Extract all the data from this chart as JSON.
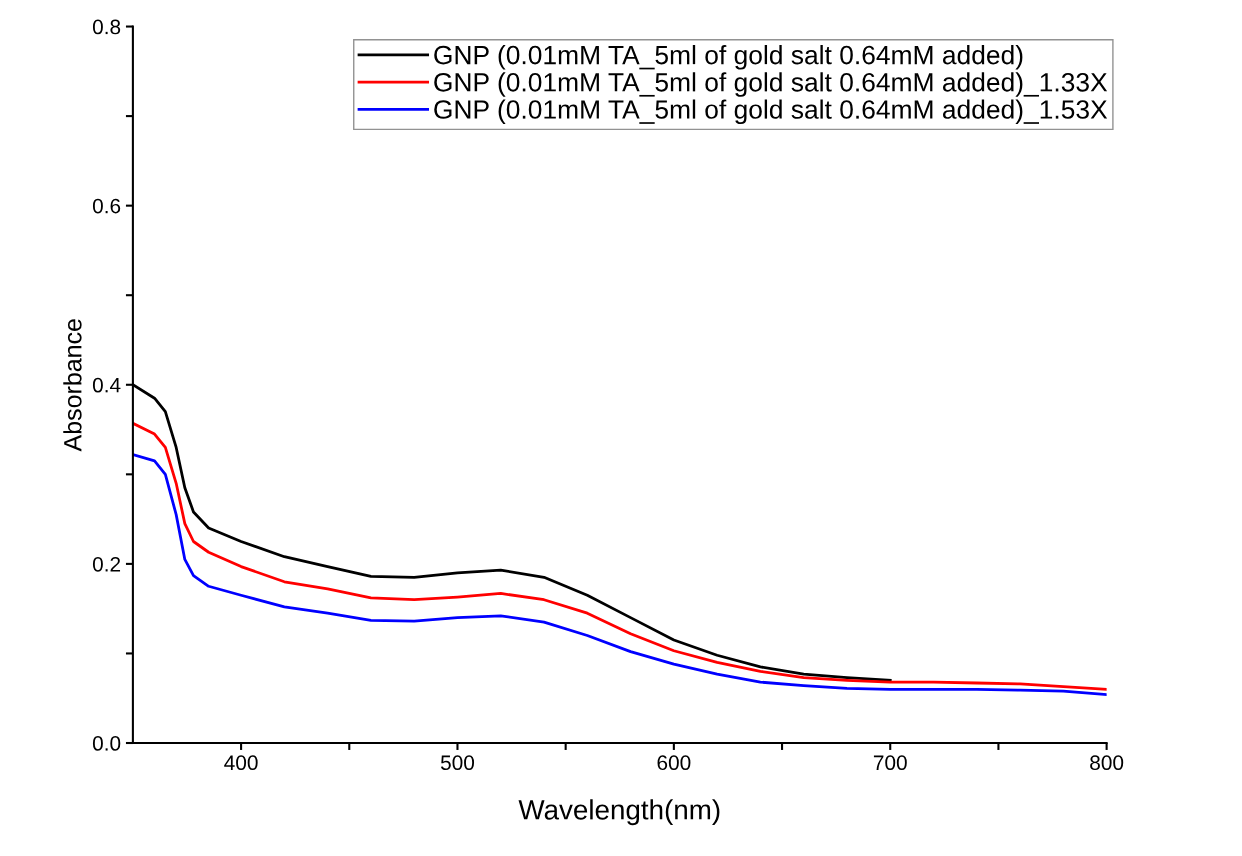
{
  "chart_data": {
    "type": "line",
    "xlabel": "Wavelength(nm)",
    "ylabel": "Absorbance",
    "xlim": [
      350,
      800
    ],
    "ylim": [
      0,
      0.8
    ],
    "xticks": [
      400,
      {
        "value": 450,
        "label": null
      },
      500,
      {
        "value": 550,
        "label": null
      },
      600,
      {
        "value": 650,
        "label": null
      },
      700,
      {
        "value": 750,
        "label": null
      },
      800
    ],
    "yticks": [
      "0.0",
      {
        "value": 0.1,
        "label": null
      },
      0.2,
      {
        "value": 0.3,
        "label": null
      },
      0.4,
      {
        "value": 0.5,
        "label": null
      },
      0.6,
      {
        "value": 0.7,
        "label": null
      },
      0.8
    ],
    "grid": false,
    "legend": "top right",
    "marker": "none",
    "line_style": "solid",
    "x": [
      350,
      360,
      365,
      370,
      374,
      378,
      385,
      400,
      420,
      440,
      460,
      480,
      500,
      520,
      540,
      560,
      580,
      600,
      620,
      640,
      660,
      680,
      700,
      720,
      740,
      760,
      780,
      800
    ],
    "series": [
      {
        "name": "GNP (0.01mM TA_5ml of gold salt 0.64mM added)",
        "color": "#000000",
        "values": [
          0.4,
          0.385,
          0.37,
          0.33,
          0.285,
          0.258,
          0.24,
          0.225,
          0.208,
          0.197,
          0.186,
          0.185,
          0.19,
          0.193,
          0.185,
          0.165,
          0.14,
          0.115,
          0.098,
          0.085,
          0.077,
          0.073,
          0.07,
          null,
          null,
          null,
          null,
          null
        ]
      },
      {
        "name": "GNP (0.01mM TA_5ml of gold salt 0.64mM added)_1.33X",
        "color": "#ff0000",
        "values": [
          0.357,
          0.345,
          0.33,
          0.29,
          0.245,
          0.225,
          0.213,
          0.197,
          0.18,
          0.172,
          0.162,
          0.16,
          0.163,
          0.167,
          0.16,
          0.145,
          0.122,
          0.103,
          0.09,
          0.08,
          0.073,
          0.07,
          0.068,
          0.068,
          0.067,
          0.066,
          0.063,
          0.06
        ]
      },
      {
        "name": "GNP (0.01mM TA_5ml of gold salt 0.64mM added)_1.53X",
        "color": "#0000ff",
        "values": [
          0.322,
          0.315,
          0.3,
          0.255,
          0.205,
          0.187,
          0.175,
          0.165,
          0.152,
          0.145,
          0.137,
          0.136,
          0.14,
          0.142,
          0.135,
          0.12,
          0.102,
          0.088,
          0.077,
          0.068,
          0.064,
          0.061,
          0.06,
          0.06,
          0.06,
          0.059,
          0.058,
          0.054
        ]
      }
    ]
  }
}
